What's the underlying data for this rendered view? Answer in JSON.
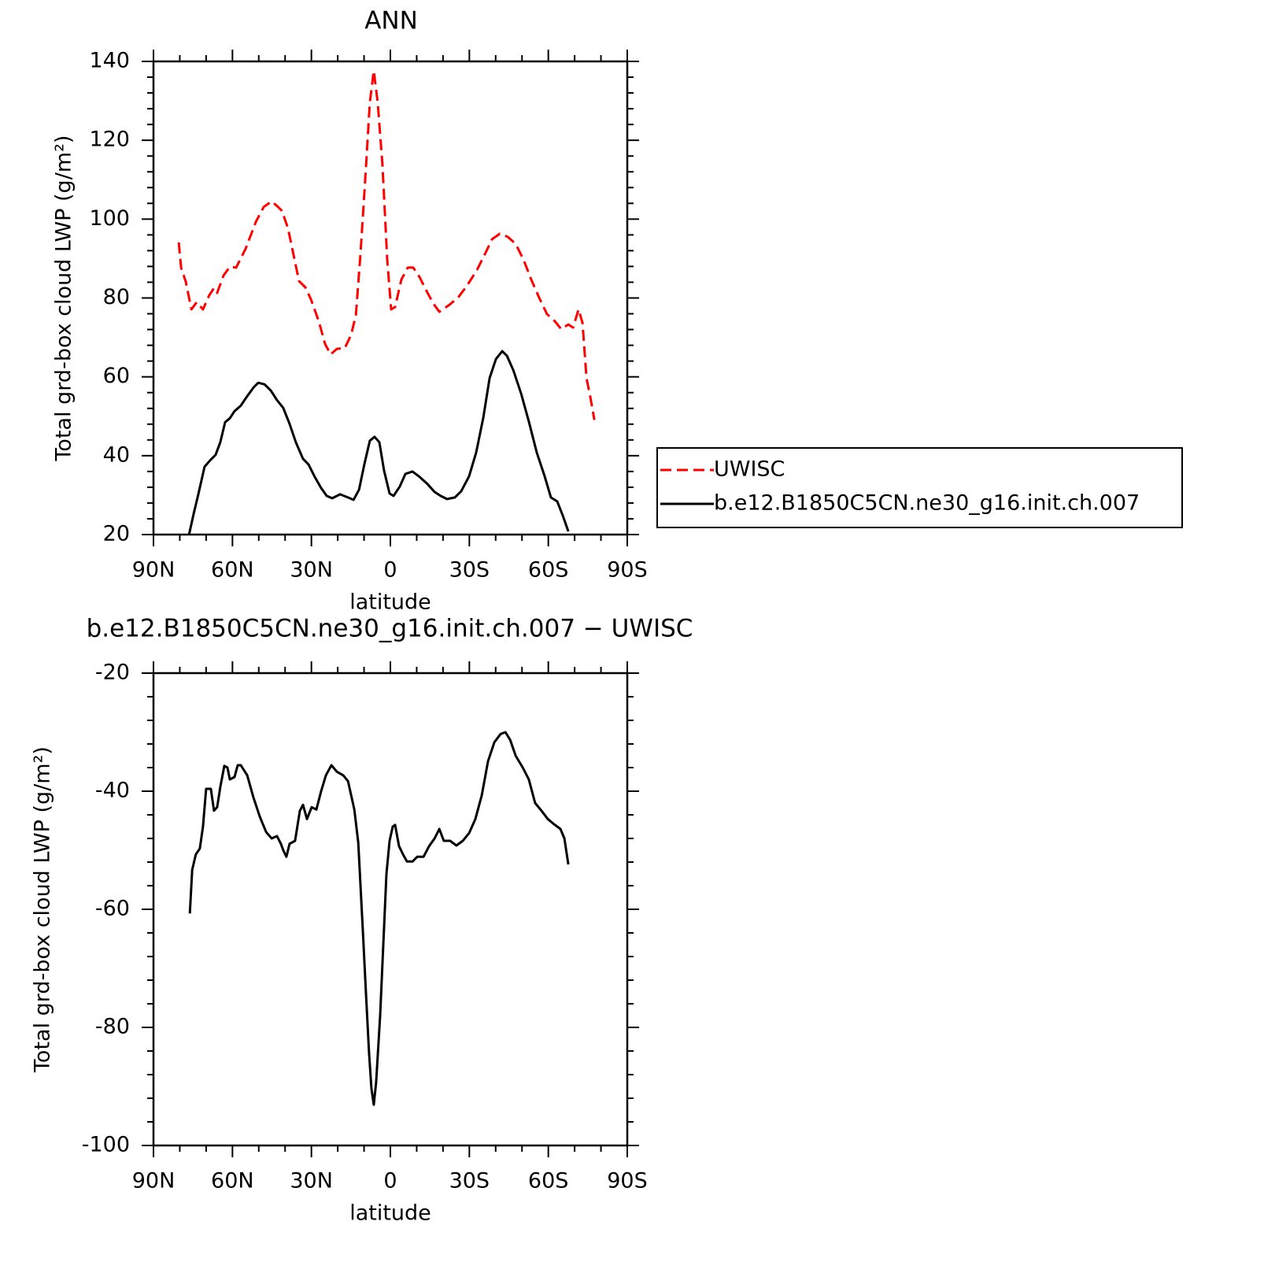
{
  "chart_data": [
    {
      "type": "line",
      "title": "ANN",
      "xlabel": "latitude",
      "ylabel": "Total grd-box cloud LWP (g/m²)",
      "xlim": [
        90,
        -90
      ],
      "xticks": [
        {
          "value": 90,
          "label": "90N"
        },
        {
          "value": 60,
          "label": "60N"
        },
        {
          "value": 30,
          "label": "30N"
        },
        0,
        {
          "value": -30,
          "label": "30S"
        },
        {
          "value": -60,
          "label": "60S"
        },
        {
          "value": -90,
          "label": "90S"
        }
      ],
      "xminorticks": [
        80,
        70,
        50,
        40,
        20,
        10,
        -10,
        -20,
        -40,
        -50,
        -70,
        -80
      ],
      "ylim": [
        20,
        140
      ],
      "yticks": [
        20,
        40,
        60,
        80,
        100,
        120,
        140
      ],
      "yminorticks": [
        24,
        28,
        32,
        36,
        44,
        48,
        52,
        56,
        64,
        68,
        72,
        76,
        84,
        88,
        92,
        96,
        104,
        108,
        112,
        116,
        124,
        128,
        132,
        136
      ],
      "legend": "right",
      "series": [
        {
          "name": "UWISC",
          "color": "#ff0000",
          "line_style": "dashed",
          "x": [
            80.4,
            79.5,
            77.7,
            75.6,
            73.6,
            71.2,
            68.8,
            67.0,
            65.8,
            63.4,
            61.0,
            58.6,
            55.0,
            51.1,
            48.1,
            45.1,
            43.0,
            41.2,
            38.9,
            36.2,
            34.7,
            32.3,
            30.2,
            27.2,
            24.8,
            22.7,
            20.3,
            17.3,
            14.9,
            13.1,
            11.3,
            9.6,
            7.8,
            6.3,
            4.8,
            3.0,
            1.2,
            -0.3,
            -1.8,
            -4.2,
            -6.6,
            -8.7,
            -11.1,
            -13.5,
            -16.2,
            -18.6,
            -22.1,
            -25.7,
            -29.3,
            -32.9,
            -35.9,
            -38.6,
            -41.6,
            -44.6,
            -47.6,
            -50.6,
            -53.5,
            -56.5,
            -59.5,
            -62.5,
            -64.9,
            -67.6,
            -69.4,
            -71.5,
            -73.0,
            -74.5,
            -76.0,
            -77.5
          ],
          "values": [
            94.1,
            87.7,
            84.1,
            77.1,
            78.9,
            77.1,
            80.7,
            82.5,
            81.3,
            85.7,
            87.9,
            87.7,
            92.5,
            99.3,
            103.1,
            104.5,
            103.3,
            102.1,
            97.7,
            89.1,
            84.3,
            82.7,
            79.7,
            74.1,
            68.3,
            65.7,
            67.1,
            67.3,
            70.7,
            75.7,
            91.7,
            109.6,
            129.6,
            137.6,
            129.6,
            113.6,
            89.7,
            77.1,
            77.7,
            84.7,
            87.7,
            87.7,
            85.3,
            82.1,
            78.7,
            76.5,
            78.1,
            80.1,
            83.3,
            87.1,
            91.1,
            94.9,
            96.3,
            95.5,
            93.7,
            89.7,
            84.7,
            80.1,
            75.9,
            74.1,
            72.1,
            73.3,
            72.5,
            77.1,
            73.7,
            59.7,
            54.7,
            49.1
          ]
        },
        {
          "name": "b.e12.B1850C5CN.ne30_g16.init.ch.007",
          "color": "#000000",
          "line_style": "solid",
          "x": [
            76.5,
            74.7,
            72.9,
            70.6,
            68.5,
            66.4,
            64.6,
            62.8,
            61.0,
            59.2,
            56.8,
            54.4,
            52.0,
            50.2,
            47.8,
            45.4,
            43.1,
            40.7,
            38.3,
            35.9,
            33.2,
            31.1,
            28.7,
            26.3,
            24.2,
            22.1,
            19.1,
            16.1,
            14.0,
            11.9,
            9.9,
            7.8,
            6.0,
            4.2,
            2.4,
            0.3,
            -1.2,
            -3.6,
            -5.7,
            -8.4,
            -10.8,
            -13.8,
            -16.8,
            -19.1,
            -21.5,
            -24.5,
            -26.9,
            -29.9,
            -32.6,
            -35.3,
            -37.7,
            -40.1,
            -42.5,
            -44.3,
            -46.7,
            -49.7,
            -52.6,
            -55.6,
            -58.6,
            -61.0,
            -63.4,
            -65.5,
            -67.6
          ],
          "values": [
            20.0,
            25.4,
            30.4,
            37.2,
            38.8,
            40.2,
            43.4,
            48.5,
            49.5,
            51.3,
            52.7,
            55.1,
            57.3,
            58.5,
            58.1,
            56.5,
            54.1,
            52.1,
            48.1,
            43.4,
            39.2,
            37.8,
            34.6,
            31.8,
            29.8,
            29.2,
            30.2,
            29.4,
            28.8,
            31.4,
            37.8,
            43.8,
            44.8,
            43.4,
            36.2,
            30.4,
            29.8,
            32.2,
            35.4,
            36.0,
            34.8,
            33.0,
            30.8,
            29.8,
            29.0,
            29.4,
            31.0,
            34.8,
            40.8,
            49.7,
            59.7,
            64.5,
            66.5,
            65.3,
            61.7,
            55.7,
            48.7,
            40.8,
            34.8,
            29.4,
            28.4,
            24.8,
            20.8
          ]
        }
      ]
    },
    {
      "type": "line",
      "title": "b.e12.B1850C5CN.ne30_g16.init.ch.007 − UWISC",
      "xlabel": "latitude",
      "ylabel": "Total grd-box cloud LWP (g/m²)",
      "xlim": [
        90,
        -90
      ],
      "xticks": [
        {
          "value": 90,
          "label": "90N"
        },
        {
          "value": 60,
          "label": "60N"
        },
        {
          "value": 30,
          "label": "30N"
        },
        0,
        {
          "value": -30,
          "label": "30S"
        },
        {
          "value": -60,
          "label": "60S"
        },
        {
          "value": -90,
          "label": "90S"
        }
      ],
      "xminorticks": [
        80,
        70,
        50,
        40,
        20,
        10,
        -10,
        -20,
        -40,
        -50,
        -70,
        -80
      ],
      "ylim": [
        -100,
        -20
      ],
      "yticks": [
        -100,
        -80,
        -60,
        -40,
        -20
      ],
      "yminorticks": [
        -96,
        -92,
        -88,
        -84,
        -76,
        -72,
        -68,
        -64,
        -56,
        -52,
        -48,
        -44,
        -36,
        -32,
        -28,
        -24
      ],
      "series": [
        {
          "color": "#000000",
          "line_style": "solid",
          "x": [
            76.2,
            75.3,
            73.9,
            72.4,
            71.2,
            70.0,
            68.2,
            67.0,
            65.8,
            64.6,
            63.1,
            61.9,
            61.0,
            59.2,
            58.0,
            56.8,
            54.4,
            52.0,
            49.6,
            47.2,
            45.1,
            43.1,
            41.6,
            40.7,
            39.5,
            38.3,
            36.2,
            34.4,
            33.2,
            31.7,
            29.9,
            28.1,
            26.3,
            24.5,
            22.4,
            20.3,
            17.9,
            16.1,
            13.7,
            12.2,
            10.5,
            9.3,
            8.1,
            7.2,
            6.3,
            5.4,
            3.9,
            2.7,
            1.5,
            0.3,
            -0.9,
            -1.8,
            -3.3,
            -4.8,
            -6.3,
            -8.4,
            -10.2,
            -12.6,
            -14.7,
            -16.8,
            -18.6,
            -20.3,
            -22.7,
            -25.1,
            -27.5,
            -29.9,
            -32.3,
            -34.7,
            -37.1,
            -39.5,
            -41.9,
            -43.7,
            -45.5,
            -47.6,
            -50.3,
            -52.6,
            -55.0,
            -57.4,
            -59.8,
            -62.2,
            -64.6,
            -66.1,
            -67.6
          ],
          "values": [
            -60.7,
            -53.3,
            -50.7,
            -49.7,
            -46.0,
            -39.6,
            -39.6,
            -43.3,
            -42.7,
            -39.3,
            -35.7,
            -36.0,
            -38.0,
            -37.6,
            -35.6,
            -35.6,
            -37.3,
            -41.1,
            -44.3,
            -46.9,
            -48.0,
            -47.6,
            -48.9,
            -50.0,
            -51.1,
            -48.9,
            -48.4,
            -43.3,
            -42.3,
            -44.7,
            -42.7,
            -43.1,
            -40.0,
            -37.3,
            -35.6,
            -36.7,
            -37.3,
            -38.3,
            -43.1,
            -48.7,
            -63.3,
            -74.0,
            -84.3,
            -90.3,
            -93.1,
            -89.3,
            -78.0,
            -66.0,
            -54.0,
            -48.4,
            -46.0,
            -45.7,
            -49.3,
            -50.7,
            -51.9,
            -51.9,
            -51.1,
            -51.1,
            -49.3,
            -48.0,
            -46.4,
            -48.4,
            -48.4,
            -49.2,
            -48.4,
            -47.1,
            -44.7,
            -40.7,
            -34.9,
            -31.7,
            -30.3,
            -30.0,
            -31.3,
            -34.0,
            -36.0,
            -38.0,
            -42.0,
            -43.3,
            -44.7,
            -45.6,
            -46.4,
            -48.0,
            -52.4
          ]
        }
      ]
    }
  ]
}
